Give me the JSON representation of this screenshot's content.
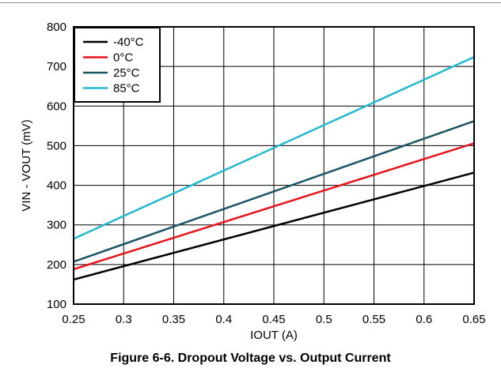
{
  "caption": "Figure 6-6. Dropout Voltage vs. Output Current",
  "chart_data": {
    "type": "line",
    "xlabel": "IOUT (A)",
    "ylabel": "VIN - VOUT (mV)",
    "xlim": [
      0.25,
      0.65
    ],
    "ylim": [
      100,
      800
    ],
    "xticks": [
      0.25,
      0.3,
      0.35,
      0.4,
      0.45,
      0.5,
      0.55,
      0.6,
      0.65
    ],
    "xtick_labels": [
      "0.25",
      "0.3",
      "0.35",
      "0.4",
      "0.45",
      "0.5",
      "0.55",
      "0.6",
      "0.65"
    ],
    "yticks": [
      100,
      200,
      300,
      400,
      500,
      600,
      700,
      800
    ],
    "ytick_labels": [
      "100",
      "200",
      "300",
      "400",
      "500",
      "600",
      "700",
      "800"
    ],
    "grid": true,
    "legend_position": "top-left",
    "x": [
      0.25,
      0.65
    ],
    "series": [
      {
        "name": "-40°C",
        "color": "#000000",
        "values": [
          162,
          432
        ]
      },
      {
        "name": "0°C",
        "color": "#e8141c",
        "values": [
          188,
          506
        ]
      },
      {
        "name": "25°C",
        "color": "#1b5563",
        "values": [
          207,
          562
        ]
      },
      {
        "name": "85°C",
        "color": "#22b8cf",
        "values": [
          265,
          724
        ]
      }
    ]
  }
}
